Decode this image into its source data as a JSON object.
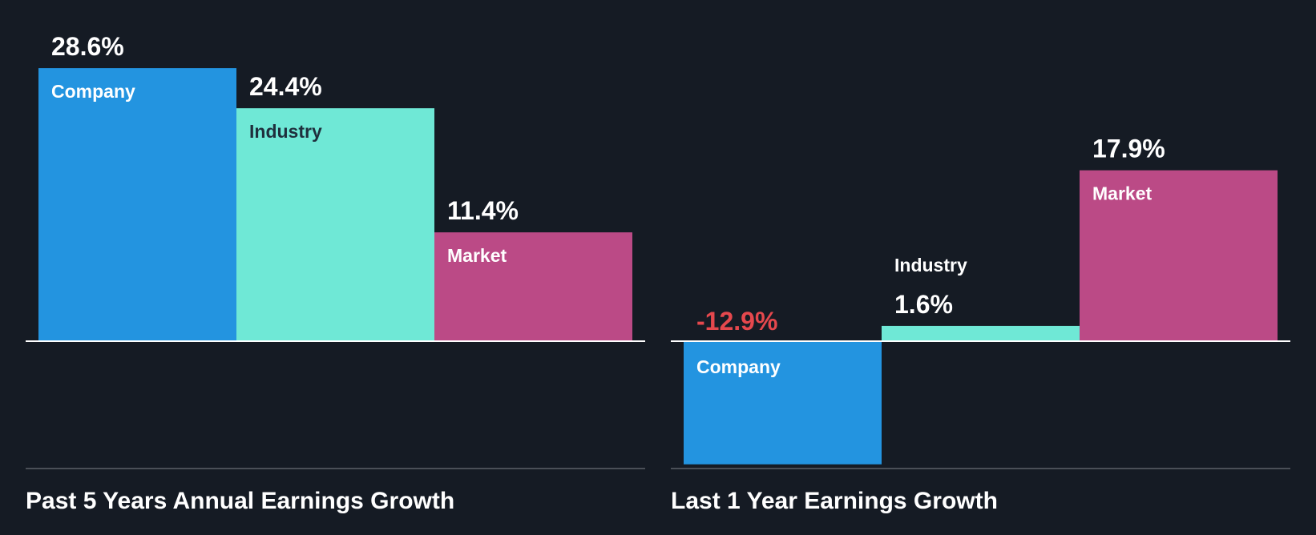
{
  "colors": {
    "background": "#151b24",
    "company": "#2394e0",
    "industry": "#6fe8d6",
    "market": "#bb4a86",
    "negative_label": "#e5484d",
    "baseline": "#ffffff",
    "footer_line": "#4a4f57",
    "text": "#ffffff",
    "industry_label_text": "#1f2f3d"
  },
  "chart_data": [
    {
      "type": "bar",
      "title": "Past 5 Years Annual Earnings Growth",
      "categories": [
        "Company",
        "Industry",
        "Market"
      ],
      "values": [
        28.6,
        24.4,
        11.4
      ],
      "value_labels": [
        "28.6%",
        "24.4%",
        "11.4%"
      ],
      "unit": "%",
      "ylim": [
        -13.4,
        28.6
      ]
    },
    {
      "type": "bar",
      "title": "Last 1 Year Earnings Growth",
      "categories": [
        "Company",
        "Industry",
        "Market"
      ],
      "values": [
        -12.9,
        1.6,
        17.9
      ],
      "value_labels": [
        "-12.9%",
        "1.6%",
        "17.9%"
      ],
      "unit": "%",
      "ylim": [
        -13.4,
        28.6
      ]
    }
  ]
}
